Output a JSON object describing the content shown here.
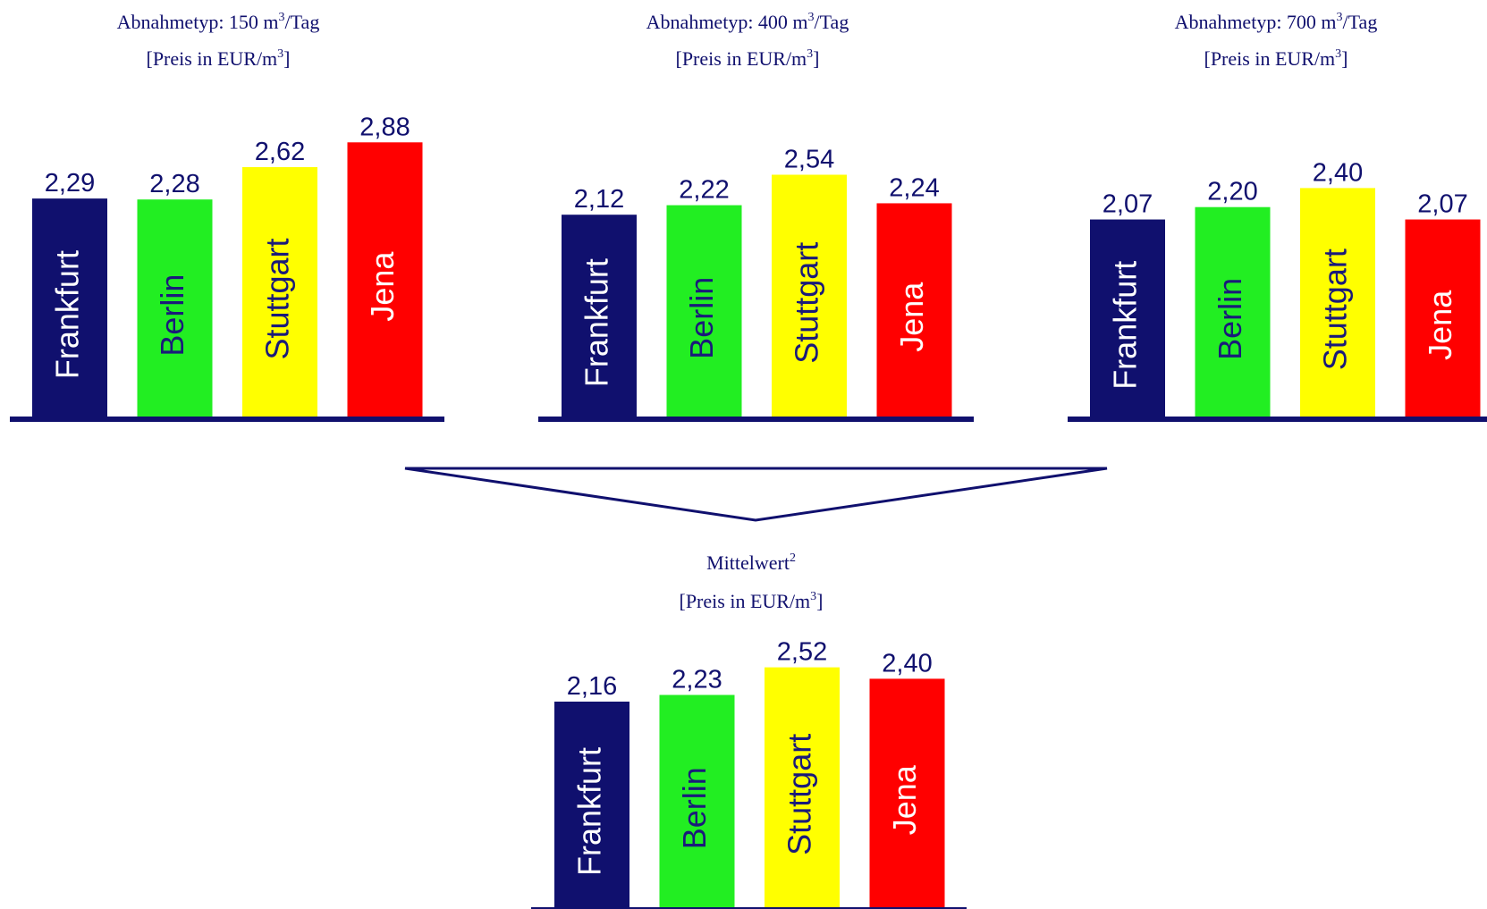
{
  "colors": {
    "text": "#10106e",
    "axis": "#10106e",
    "frankfurt": "#10106e",
    "berlin": "#22ee22",
    "stuttgart": "#ffff00",
    "jena": "#ff0000",
    "label_dark": "#ffffff",
    "label_light": "#1a1a7a"
  },
  "chart_data": [
    {
      "type": "bar",
      "title": "Abnahmetyp: 150  m³/Tag",
      "subtitle": "[Preis in EUR/m³]",
      "categories": [
        "Frankfurt",
        "Berlin",
        "Stuttgart",
        "Jena"
      ],
      "values": [
        2.29,
        2.28,
        2.62,
        2.88
      ],
      "value_labels": [
        "2,29",
        "2,28",
        "2,62",
        "2,88"
      ]
    },
    {
      "type": "bar",
      "title": "Abnahmetyp: 400  m³/Tag",
      "subtitle": "[Preis in  EUR/m³]",
      "categories": [
        "Frankfurt",
        "Berlin",
        "Stuttgart",
        "Jena"
      ],
      "values": [
        2.12,
        2.22,
        2.54,
        2.24
      ],
      "value_labels": [
        "2,12",
        "2,22",
        "2,54",
        "2,24"
      ]
    },
    {
      "type": "bar",
      "title": "Abnahmetyp: 700 m³/Tag",
      "subtitle": "[Preis in EUR/m³]",
      "categories": [
        "Frankfurt",
        "Berlin",
        "Stuttgart",
        "Jena"
      ],
      "values": [
        2.07,
        2.2,
        2.4,
        2.07
      ],
      "value_labels": [
        "2,07",
        "2,20",
        "2,40",
        "2,07"
      ]
    },
    {
      "type": "bar",
      "title": "Mittelwert²",
      "subtitle": "[Preis in EUR/m³]",
      "categories": [
        "Frankfurt",
        "Berlin",
        "Stuttgart",
        "Jena"
      ],
      "values": [
        2.16,
        2.23,
        2.52,
        2.4
      ],
      "value_labels": [
        "2,16",
        "2,23",
        "2,52",
        "2,40"
      ]
    }
  ]
}
